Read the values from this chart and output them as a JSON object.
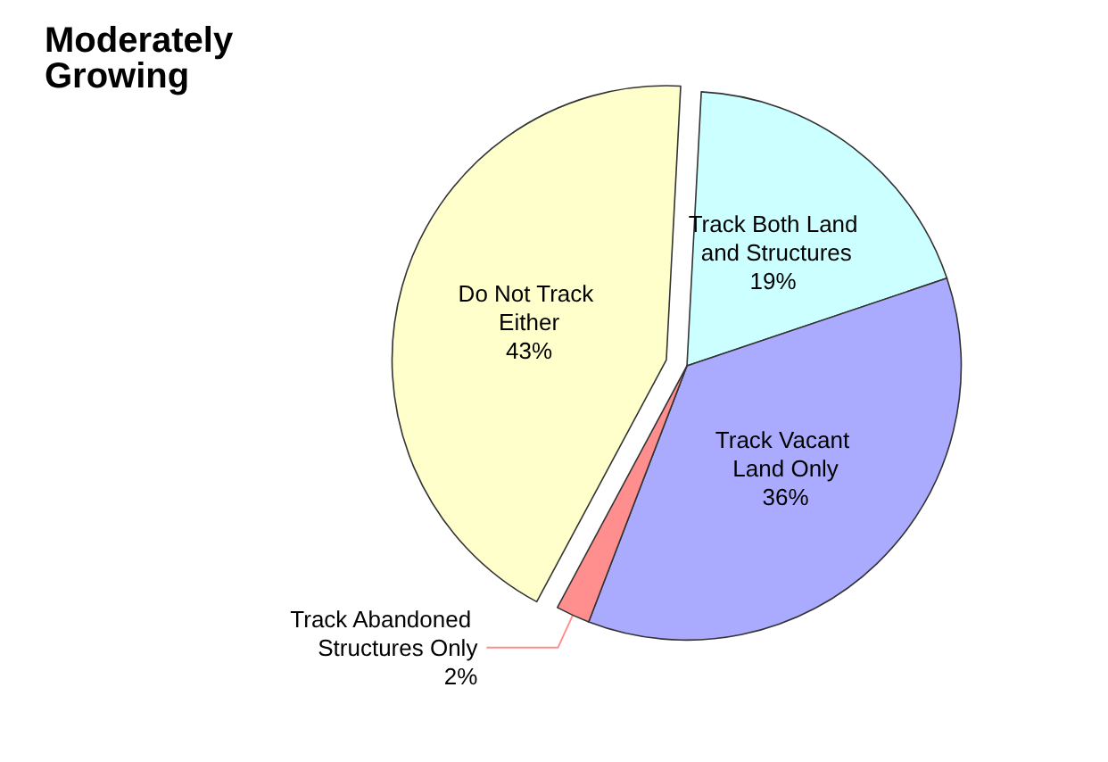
{
  "chart_data": {
    "type": "pie",
    "title": "Moderately Growing",
    "categories": [
      "Track Both Land and Structures",
      "Track Vacant Land Only",
      "Track Abandoned Structures Only",
      "Do Not Track Either"
    ],
    "values": [
      19,
      36,
      2,
      43
    ],
    "colors": [
      "#ccffff",
      "#aaaaff",
      "#ff8f8f",
      "#ffffcc"
    ],
    "value_labels": [
      "19%",
      "36%",
      "2%",
      "43%"
    ],
    "legend": false
  }
}
